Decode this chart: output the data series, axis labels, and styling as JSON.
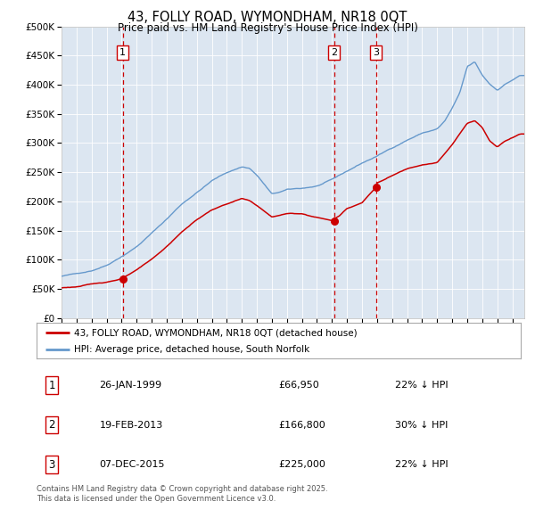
{
  "title": "43, FOLLY ROAD, WYMONDHAM, NR18 0QT",
  "subtitle": "Price paid vs. HM Land Registry's House Price Index (HPI)",
  "legend_line1": "43, FOLLY ROAD, WYMONDHAM, NR18 0QT (detached house)",
  "legend_line2": "HPI: Average price, detached house, South Norfolk",
  "footnote1": "Contains HM Land Registry data © Crown copyright and database right 2025.",
  "footnote2": "This data is licensed under the Open Government Licence v3.0.",
  "transactions": [
    {
      "label": "1",
      "date": "26-JAN-1999",
      "price": "£66,950",
      "pct": "22% ↓ HPI",
      "year": 1999.07,
      "price_val": 66950
    },
    {
      "label": "2",
      "date": "19-FEB-2013",
      "price": "£166,800",
      "pct": "30% ↓ HPI",
      "year": 2013.13,
      "price_val": 166800
    },
    {
      "label": "3",
      "date": "07-DEC-2015",
      "price": "£225,000",
      "pct": "22% ↓ HPI",
      "year": 2015.93,
      "price_val": 225000
    }
  ],
  "hpi_color": "#6699cc",
  "price_color": "#cc0000",
  "background_color": "#dce6f1",
  "vline_color": "#cc0000",
  "dot_color": "#cc0000",
  "ylim": [
    0,
    500000
  ],
  "xlim_start": 1995.0,
  "xlim_end": 2025.8,
  "yticks": [
    0,
    50000,
    100000,
    150000,
    200000,
    250000,
    300000,
    350000,
    400000,
    450000,
    500000
  ],
  "ytick_labels": [
    "£0",
    "£50K",
    "£100K",
    "£150K",
    "£200K",
    "£250K",
    "£300K",
    "£350K",
    "£400K",
    "£450K",
    "£500K"
  ]
}
